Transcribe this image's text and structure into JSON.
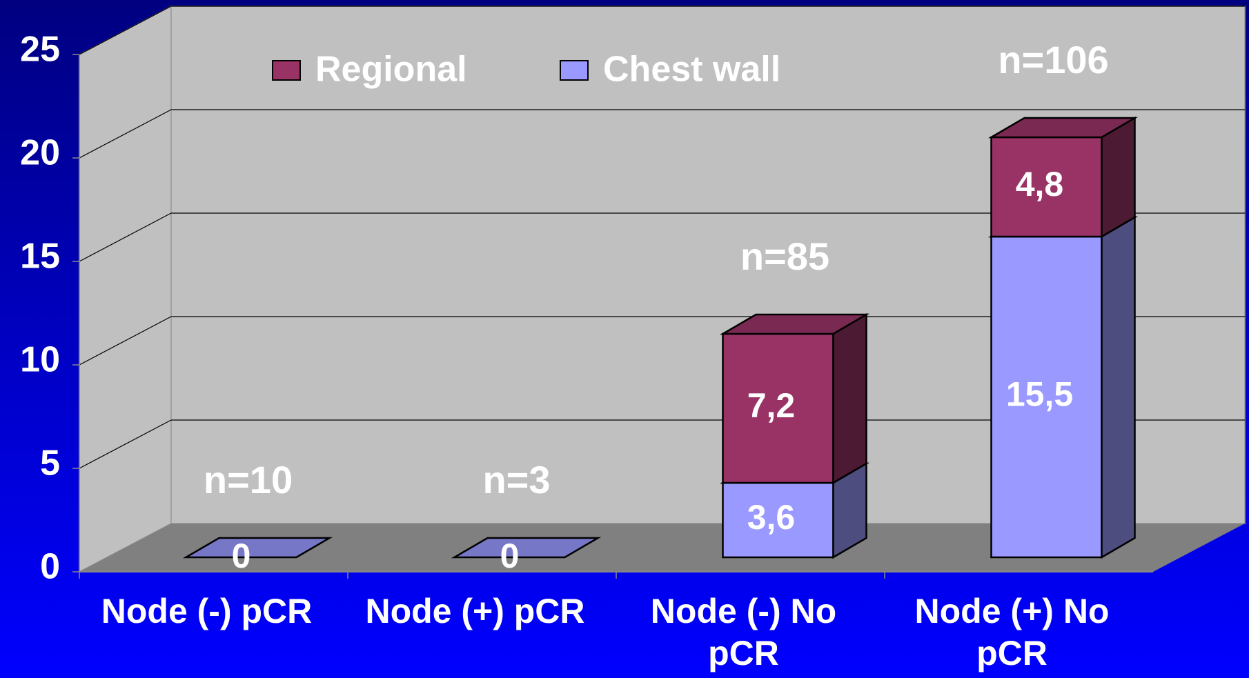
{
  "chart_data": {
    "type": "bar3d_stacked",
    "categories": [
      "Node (-) pCR",
      "Node (+) pCR",
      "Node (-) No pCR",
      "Node (+) No pCR"
    ],
    "series": [
      {
        "name": "Chest wall",
        "color": "#9999ff",
        "values": [
          0,
          0,
          3.6,
          15.5
        ],
        "value_labels": [
          "0",
          "0",
          "3,6",
          "15,5"
        ]
      },
      {
        "name": "Regional",
        "color": "#993366",
        "values": [
          null,
          null,
          7.2,
          4.8
        ],
        "value_labels": [
          null,
          null,
          "7,2",
          "4,8"
        ]
      }
    ],
    "annotations": [
      "n=10",
      "n=3",
      "n=85",
      "n=106"
    ],
    "ylim": [
      0,
      25
    ],
    "yticks": [
      0,
      5,
      10,
      15,
      20,
      25
    ],
    "grid": true
  }
}
